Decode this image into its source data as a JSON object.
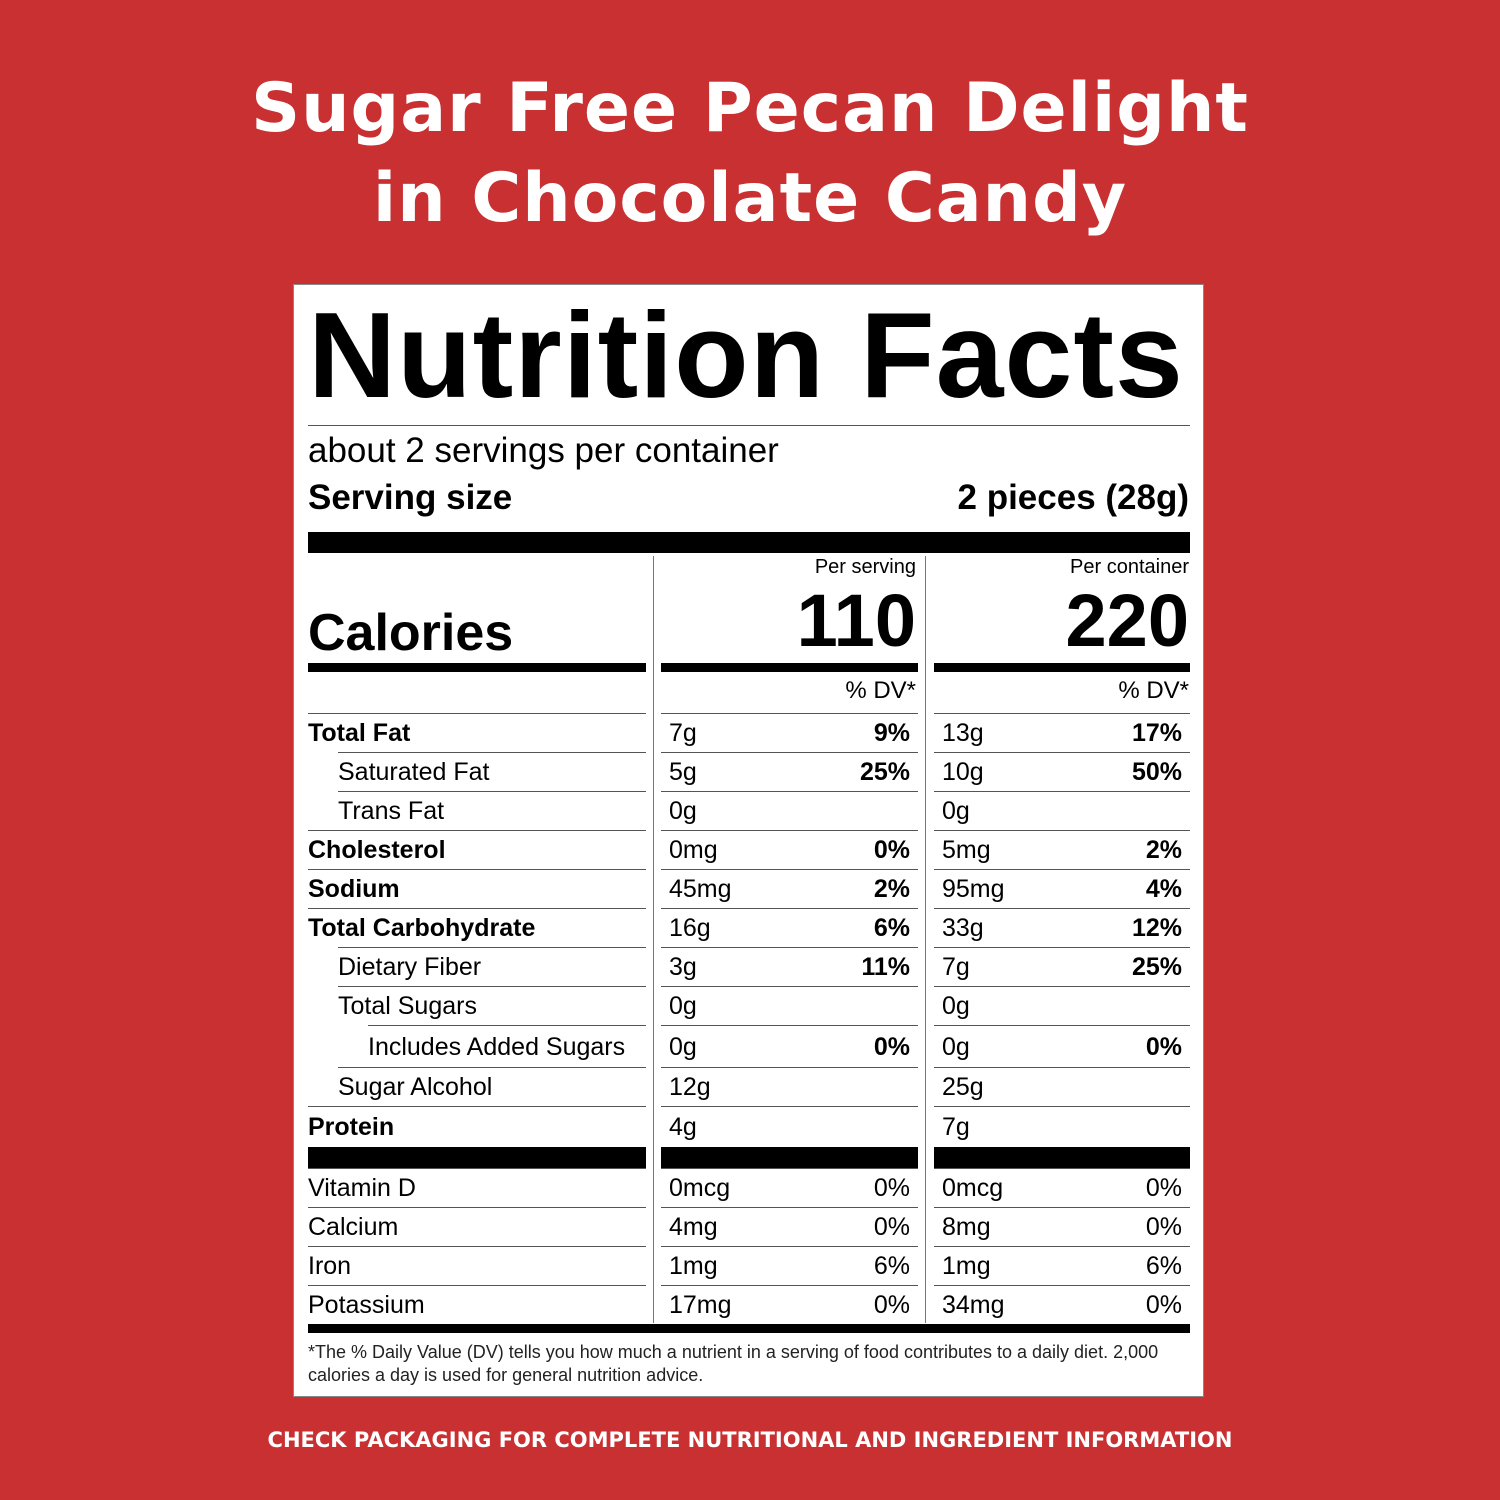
{
  "title_line1": "Sugar Free Pecan Delight",
  "title_line2": "in Chocolate Candy",
  "label": {
    "heading": "Nutrition Facts",
    "servings_per_container": "about 2 servings per container",
    "serving_size_label": "Serving size",
    "serving_size_value": "2 pieces (28g)",
    "calories_label": "Calories",
    "per_serving_label": "Per serving",
    "per_container_label": "Per container",
    "calories_per_serving": "110",
    "calories_per_container": "220",
    "dv_header": "% DV*",
    "nutrients": [
      {
        "name": "Total Fat",
        "bold": true,
        "indent": 0,
        "serving": "7g",
        "serving_dv": "9%",
        "container": "13g",
        "container_dv": "17%"
      },
      {
        "name": "Saturated Fat",
        "bold": false,
        "indent": 1,
        "serving": "5g",
        "serving_dv": "25%",
        "container": "10g",
        "container_dv": "50%"
      },
      {
        "name": "Trans Fat",
        "bold": false,
        "indent": 1,
        "serving": "0g",
        "serving_dv": "",
        "container": "0g",
        "container_dv": ""
      },
      {
        "name": "Cholesterol",
        "bold": true,
        "indent": 0,
        "serving": "0mg",
        "serving_dv": "0%",
        "container": "5mg",
        "container_dv": "2%"
      },
      {
        "name": "Sodium",
        "bold": true,
        "indent": 0,
        "serving": "45mg",
        "serving_dv": "2%",
        "container": "95mg",
        "container_dv": "4%"
      },
      {
        "name": "Total Carbohydrate",
        "bold": true,
        "indent": 0,
        "serving": "16g",
        "serving_dv": "6%",
        "container": "33g",
        "container_dv": "12%"
      },
      {
        "name": "Dietary Fiber",
        "bold": false,
        "indent": 1,
        "serving": "3g",
        "serving_dv": "11%",
        "container": "7g",
        "container_dv": "25%"
      },
      {
        "name": "Total Sugars",
        "bold": false,
        "indent": 1,
        "serving": "0g",
        "serving_dv": "",
        "container": "0g",
        "container_dv": ""
      },
      {
        "name": "Includes Added Sugars",
        "bold": false,
        "indent": 2,
        "serving": "0g",
        "serving_dv": "0%",
        "container": "0g",
        "container_dv": "0%"
      },
      {
        "name": "Sugar Alcohol",
        "bold": false,
        "indent": 1,
        "serving": "12g",
        "serving_dv": "",
        "container": "25g",
        "container_dv": ""
      },
      {
        "name": "Protein",
        "bold": true,
        "indent": 0,
        "serving": "4g",
        "serving_dv": "",
        "container": "7g",
        "container_dv": ""
      }
    ],
    "vitamins": [
      {
        "name": "Vitamin D",
        "serving": "0mcg",
        "serving_dv": "0%",
        "container": "0mcg",
        "container_dv": "0%"
      },
      {
        "name": "Calcium",
        "serving": "4mg",
        "serving_dv": "0%",
        "container": "8mg",
        "container_dv": "0%"
      },
      {
        "name": "Iron",
        "serving": "1mg",
        "serving_dv": "6%",
        "container": "1mg",
        "container_dv": "6%"
      },
      {
        "name": "Potassium",
        "serving": "17mg",
        "serving_dv": "0%",
        "container": "34mg",
        "container_dv": "0%"
      }
    ],
    "footnote": "*The % Daily Value (DV) tells you how much a nutrient in a serving of food contributes to a daily diet. 2,000 calories a day is used for general nutrition advice."
  },
  "bottom_note": "CHECK PACKAGING FOR COMPLETE NUTRITIONAL AND INGREDIENT INFORMATION",
  "colors": {
    "background": "#c93032",
    "label": "#ffffff",
    "text": "#000000"
  }
}
